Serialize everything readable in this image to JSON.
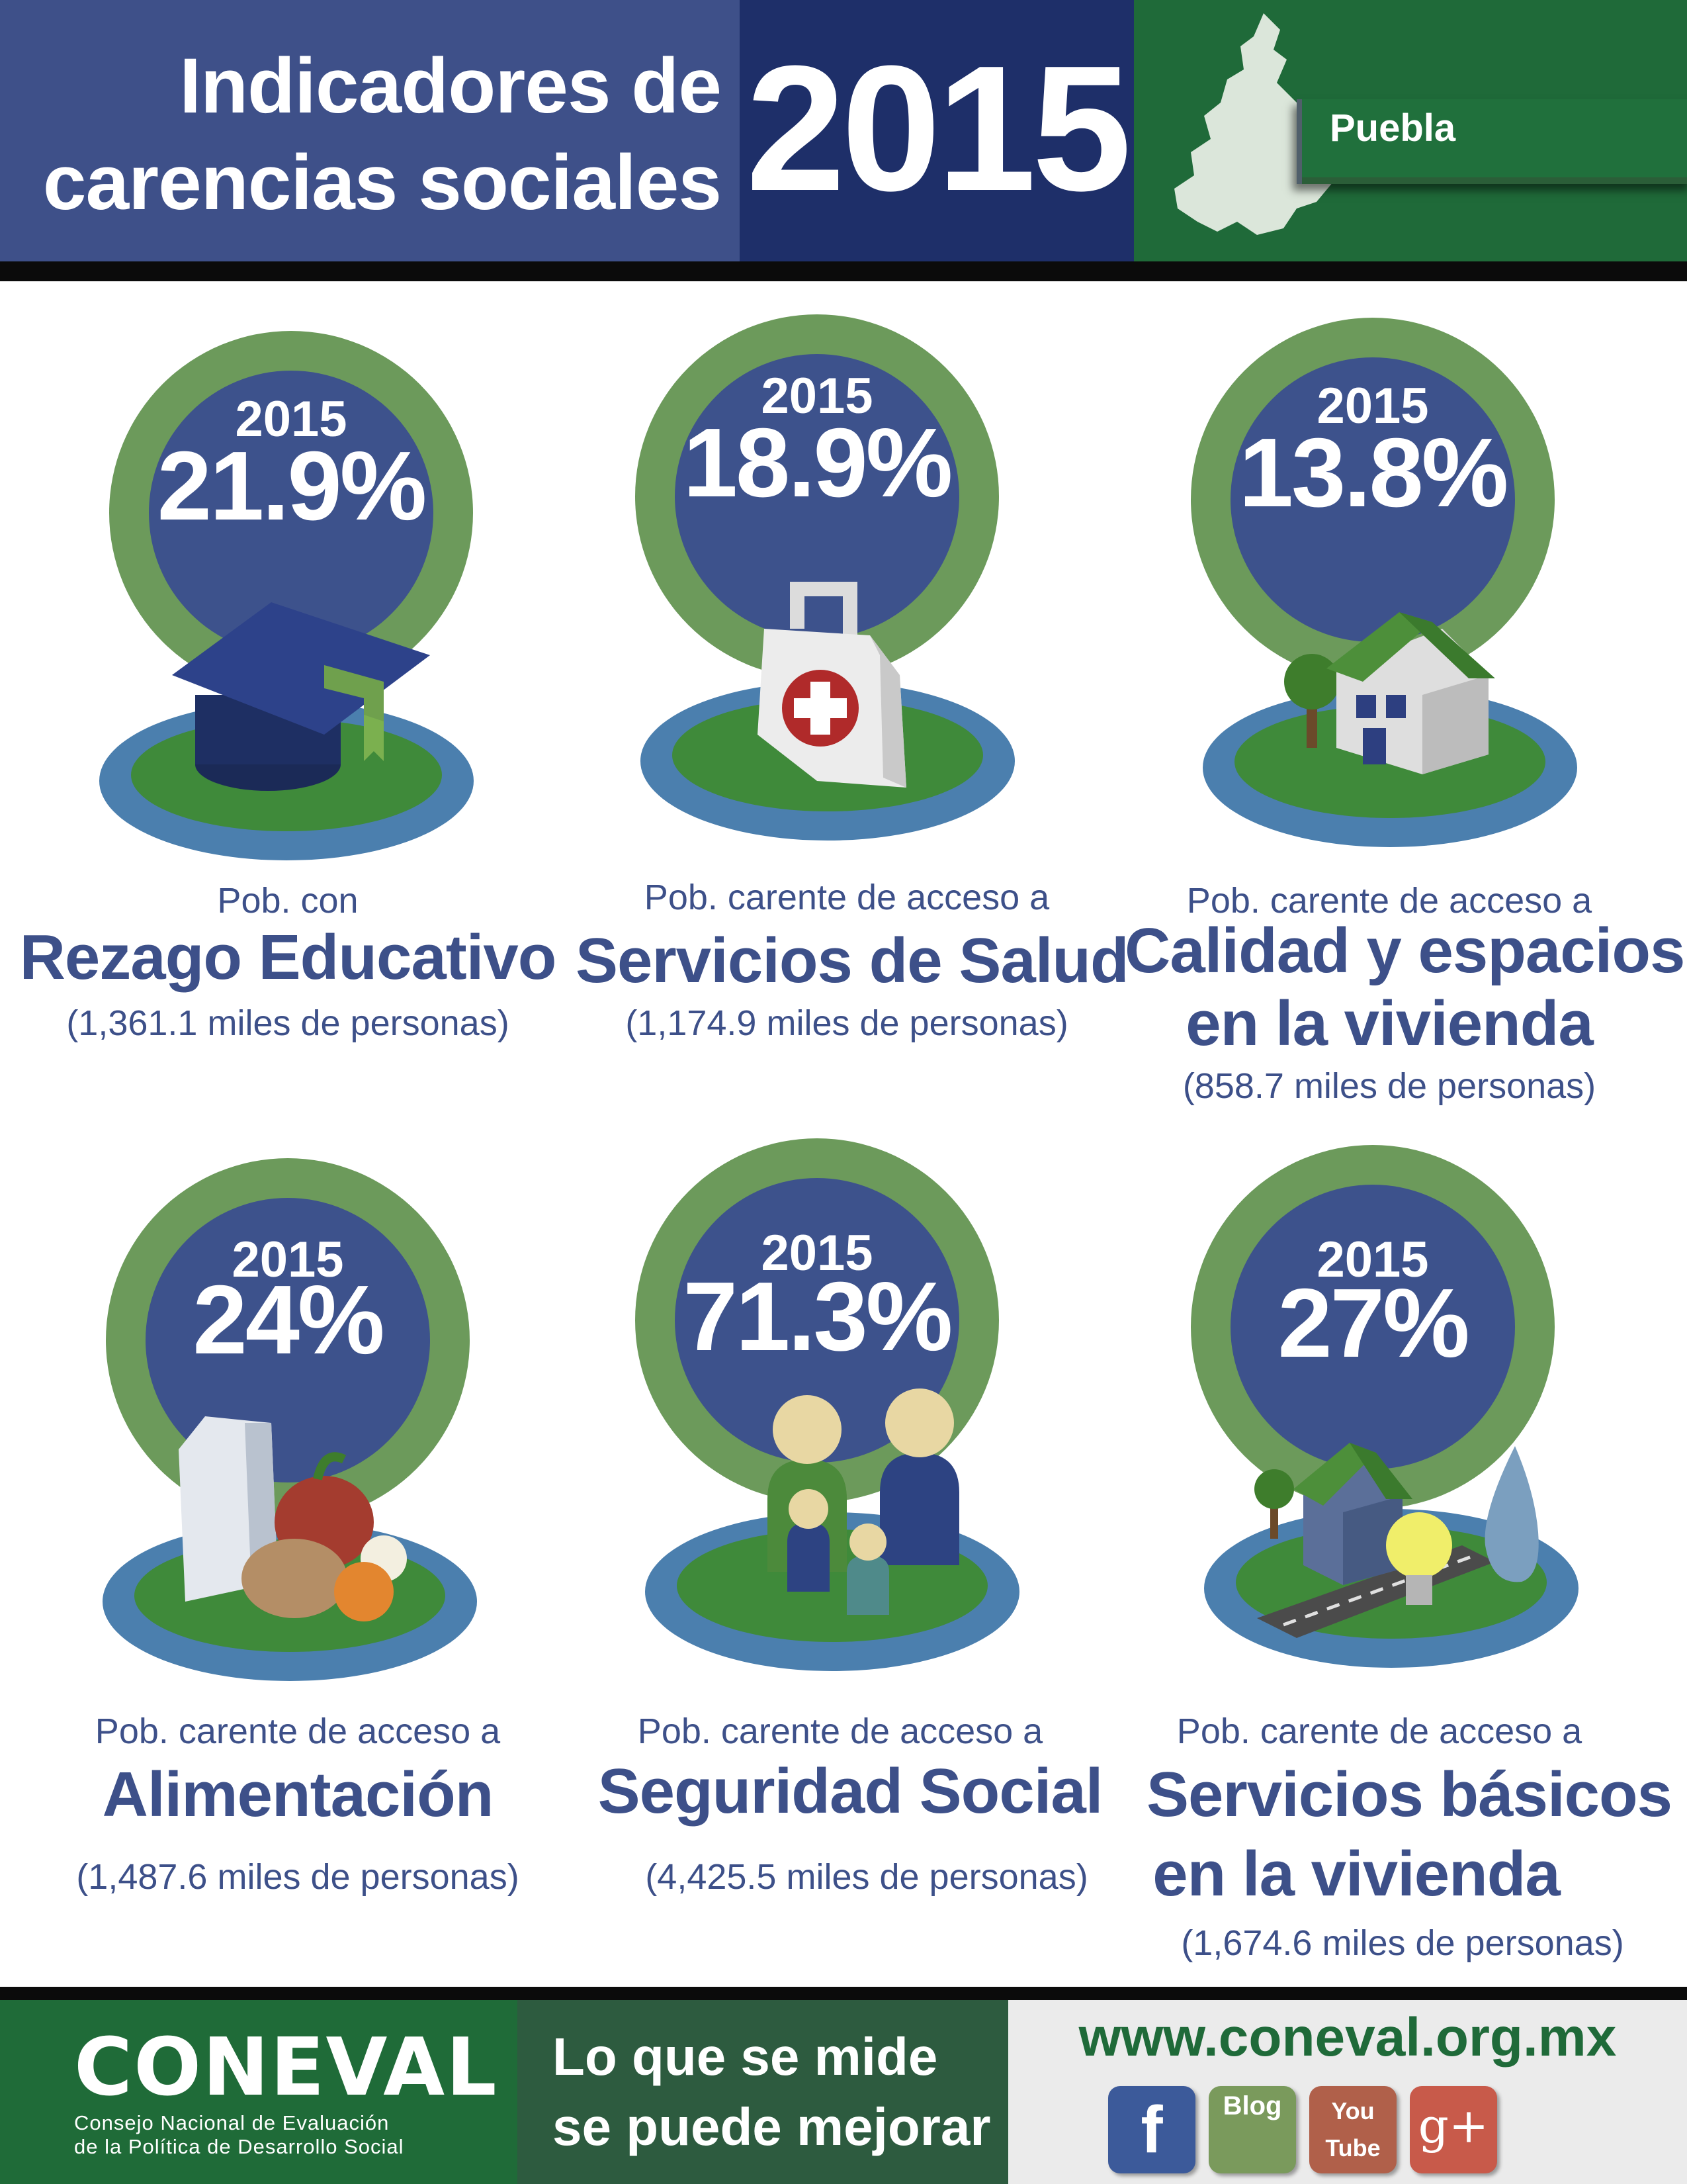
{
  "header": {
    "title_line1": "Indicadores de",
    "title_line2": "carencias sociales",
    "year": "2015",
    "state": "Puebla"
  },
  "cards": [
    {
      "year": "2015",
      "value": "21.9%",
      "line1": "Pob. con",
      "line2": "Rezago Educativo",
      "line3": "",
      "people": "(1,361.1 miles de personas)",
      "icon": "graduation-cap-icon"
    },
    {
      "year": "2015",
      "value": "18.9%",
      "line1": "Pob. carente de acceso a",
      "line2": "Servicios de Salud",
      "line3": "",
      "people": "(1,174.9 miles de personas)",
      "icon": "medical-bag-icon"
    },
    {
      "year": "2015",
      "value": "13.8%",
      "line1": "Pob. carente de acceso a",
      "line2": "Calidad y espacios",
      "line3": "en la vivienda",
      "people": "(858.7 miles de personas)",
      "icon": "house-icon"
    },
    {
      "year": "2015",
      "value": "24%",
      "line1": "Pob. carente de acceso a",
      "line2": "Alimentación",
      "line3": "",
      "people": "(1,487.6 miles de personas)",
      "icon": "food-icon"
    },
    {
      "year": "2015",
      "value": "71.3%",
      "line1": "Pob. carente de acceso a",
      "line2": "Seguridad Social",
      "line3": "",
      "people": "(4,425.5 miles de personas)",
      "icon": "family-icon"
    },
    {
      "year": "2015",
      "value": "27%",
      "line1": "Pob. carente de acceso a",
      "line2": "Servicios básicos",
      "line3": "en la vivienda",
      "people": "(1,674.6 miles de personas)",
      "icon": "utilities-icon"
    }
  ],
  "footer": {
    "logo_text": "CONEVAL",
    "org_line1": "Consejo Nacional de Evaluación",
    "org_line2": "de la Política de Desarrollo Social",
    "slogan_line1": "Lo que se mide",
    "slogan_line2": "se puede mejorar",
    "website": "www.coneval.org.mx",
    "social": [
      {
        "name": "facebook-icon",
        "text": "f",
        "color": "#3c5a9a"
      },
      {
        "name": "blog-icon",
        "text": "Blog",
        "color": "#7a9a5c"
      },
      {
        "name": "youtube-icon",
        "text": "You Tube",
        "color": "#b0604a"
      },
      {
        "name": "google-plus-icon",
        "text": "g+",
        "color": "#c85a4a"
      }
    ]
  },
  "colors": {
    "header_blue": "#3e5089",
    "header_navy": "#1e2f69",
    "brand_green": "#1f6a39",
    "ring_green": "#6c9a5b",
    "disc_blue": "#3d528c",
    "text_blue": "#3d5089"
  }
}
